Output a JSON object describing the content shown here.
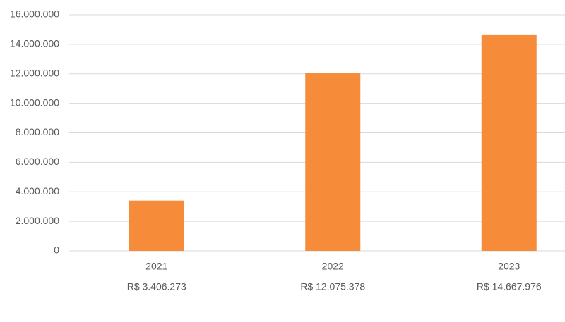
{
  "chart_data": {
    "type": "bar",
    "categories": [
      "2021",
      "2022",
      "2023"
    ],
    "values": [
      3406273,
      12075378,
      14667976
    ],
    "value_labels": [
      "R$ 3.406.273",
      "R$ 12.075.378",
      "R$ 14.667.976"
    ],
    "color": "#f68b3a",
    "ylim": [
      0,
      16000000
    ],
    "yticks": [
      0,
      {
        "value": 2000000,
        "label": "2.000.000"
      },
      {
        "value": 4000000,
        "label": "4.000.000"
      },
      {
        "value": 6000000,
        "label": "6.000.000"
      },
      {
        "value": 8000000,
        "label": "8.000.000"
      },
      {
        "value": 10000000,
        "label": "10.000.000"
      },
      {
        "value": 12000000,
        "label": "12.000.000"
      },
      {
        "value": 14000000,
        "label": "14.000.000"
      },
      {
        "value": 16000000,
        "label": "16.000.000"
      }
    ],
    "grid": true
  }
}
